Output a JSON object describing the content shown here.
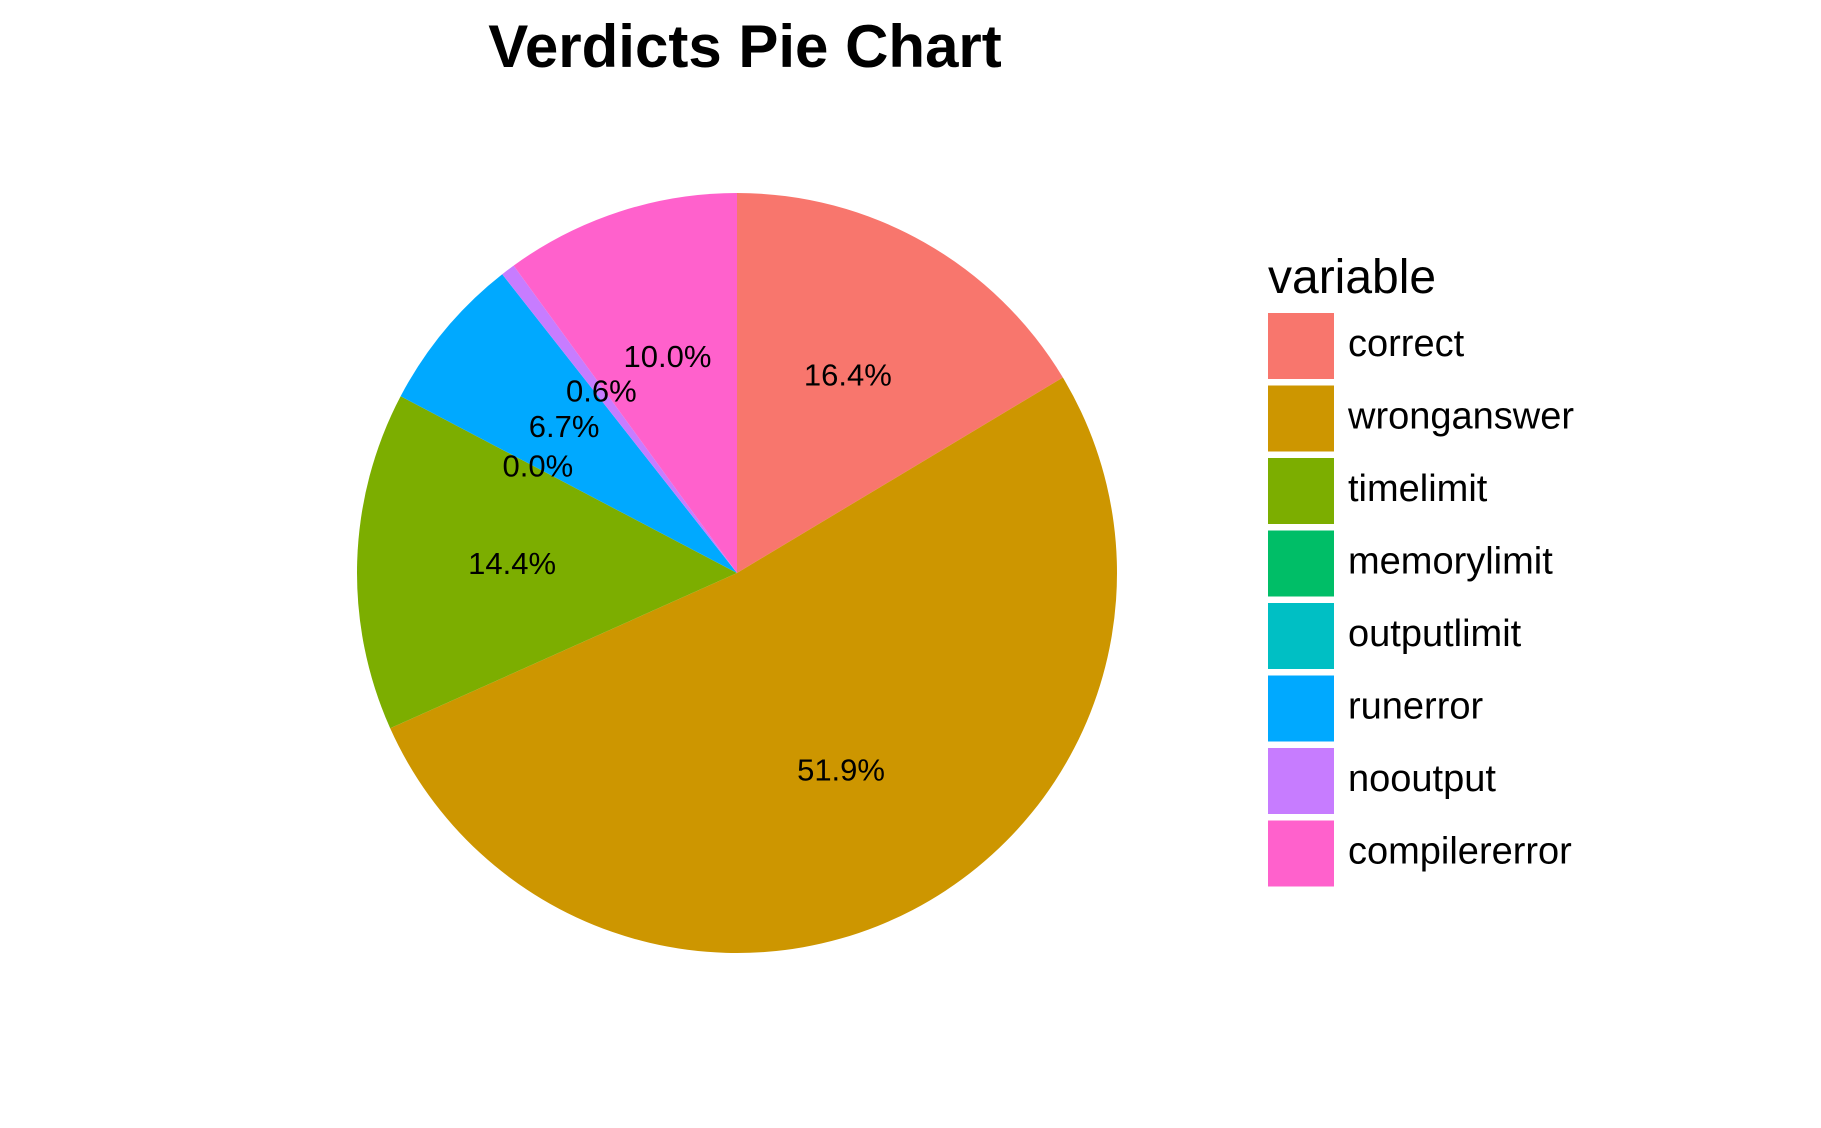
{
  "chart_data": {
    "type": "pie",
    "title": "Verdicts Pie Chart",
    "legend_title": "variable",
    "legend_position": "right",
    "start": "top",
    "direction": "clockwise",
    "slices": [
      {
        "name": "correct",
        "value": 16.4,
        "label": "16.4%",
        "color": "#F8766D"
      },
      {
        "name": "wronganswer",
        "value": 51.9,
        "label": "51.9%",
        "color": "#CD9600"
      },
      {
        "name": "timelimit",
        "value": 14.4,
        "label": "14.4%",
        "color": "#7CAE00"
      },
      {
        "name": "memorylimit",
        "value": 0.0,
        "label": "0.0%",
        "color": "#00BE67"
      },
      {
        "name": "outputlimit",
        "value": 0.0,
        "label": "",
        "color": "#00BFC4"
      },
      {
        "name": "runerror",
        "value": 6.7,
        "label": "6.7%",
        "color": "#00A9FF"
      },
      {
        "name": "nooutput",
        "value": 0.6,
        "label": "0.6%",
        "color": "#C77CFF"
      },
      {
        "name": "compilererror",
        "value": 10.0,
        "label": "10.0%",
        "color": "#FF61CC"
      }
    ]
  }
}
